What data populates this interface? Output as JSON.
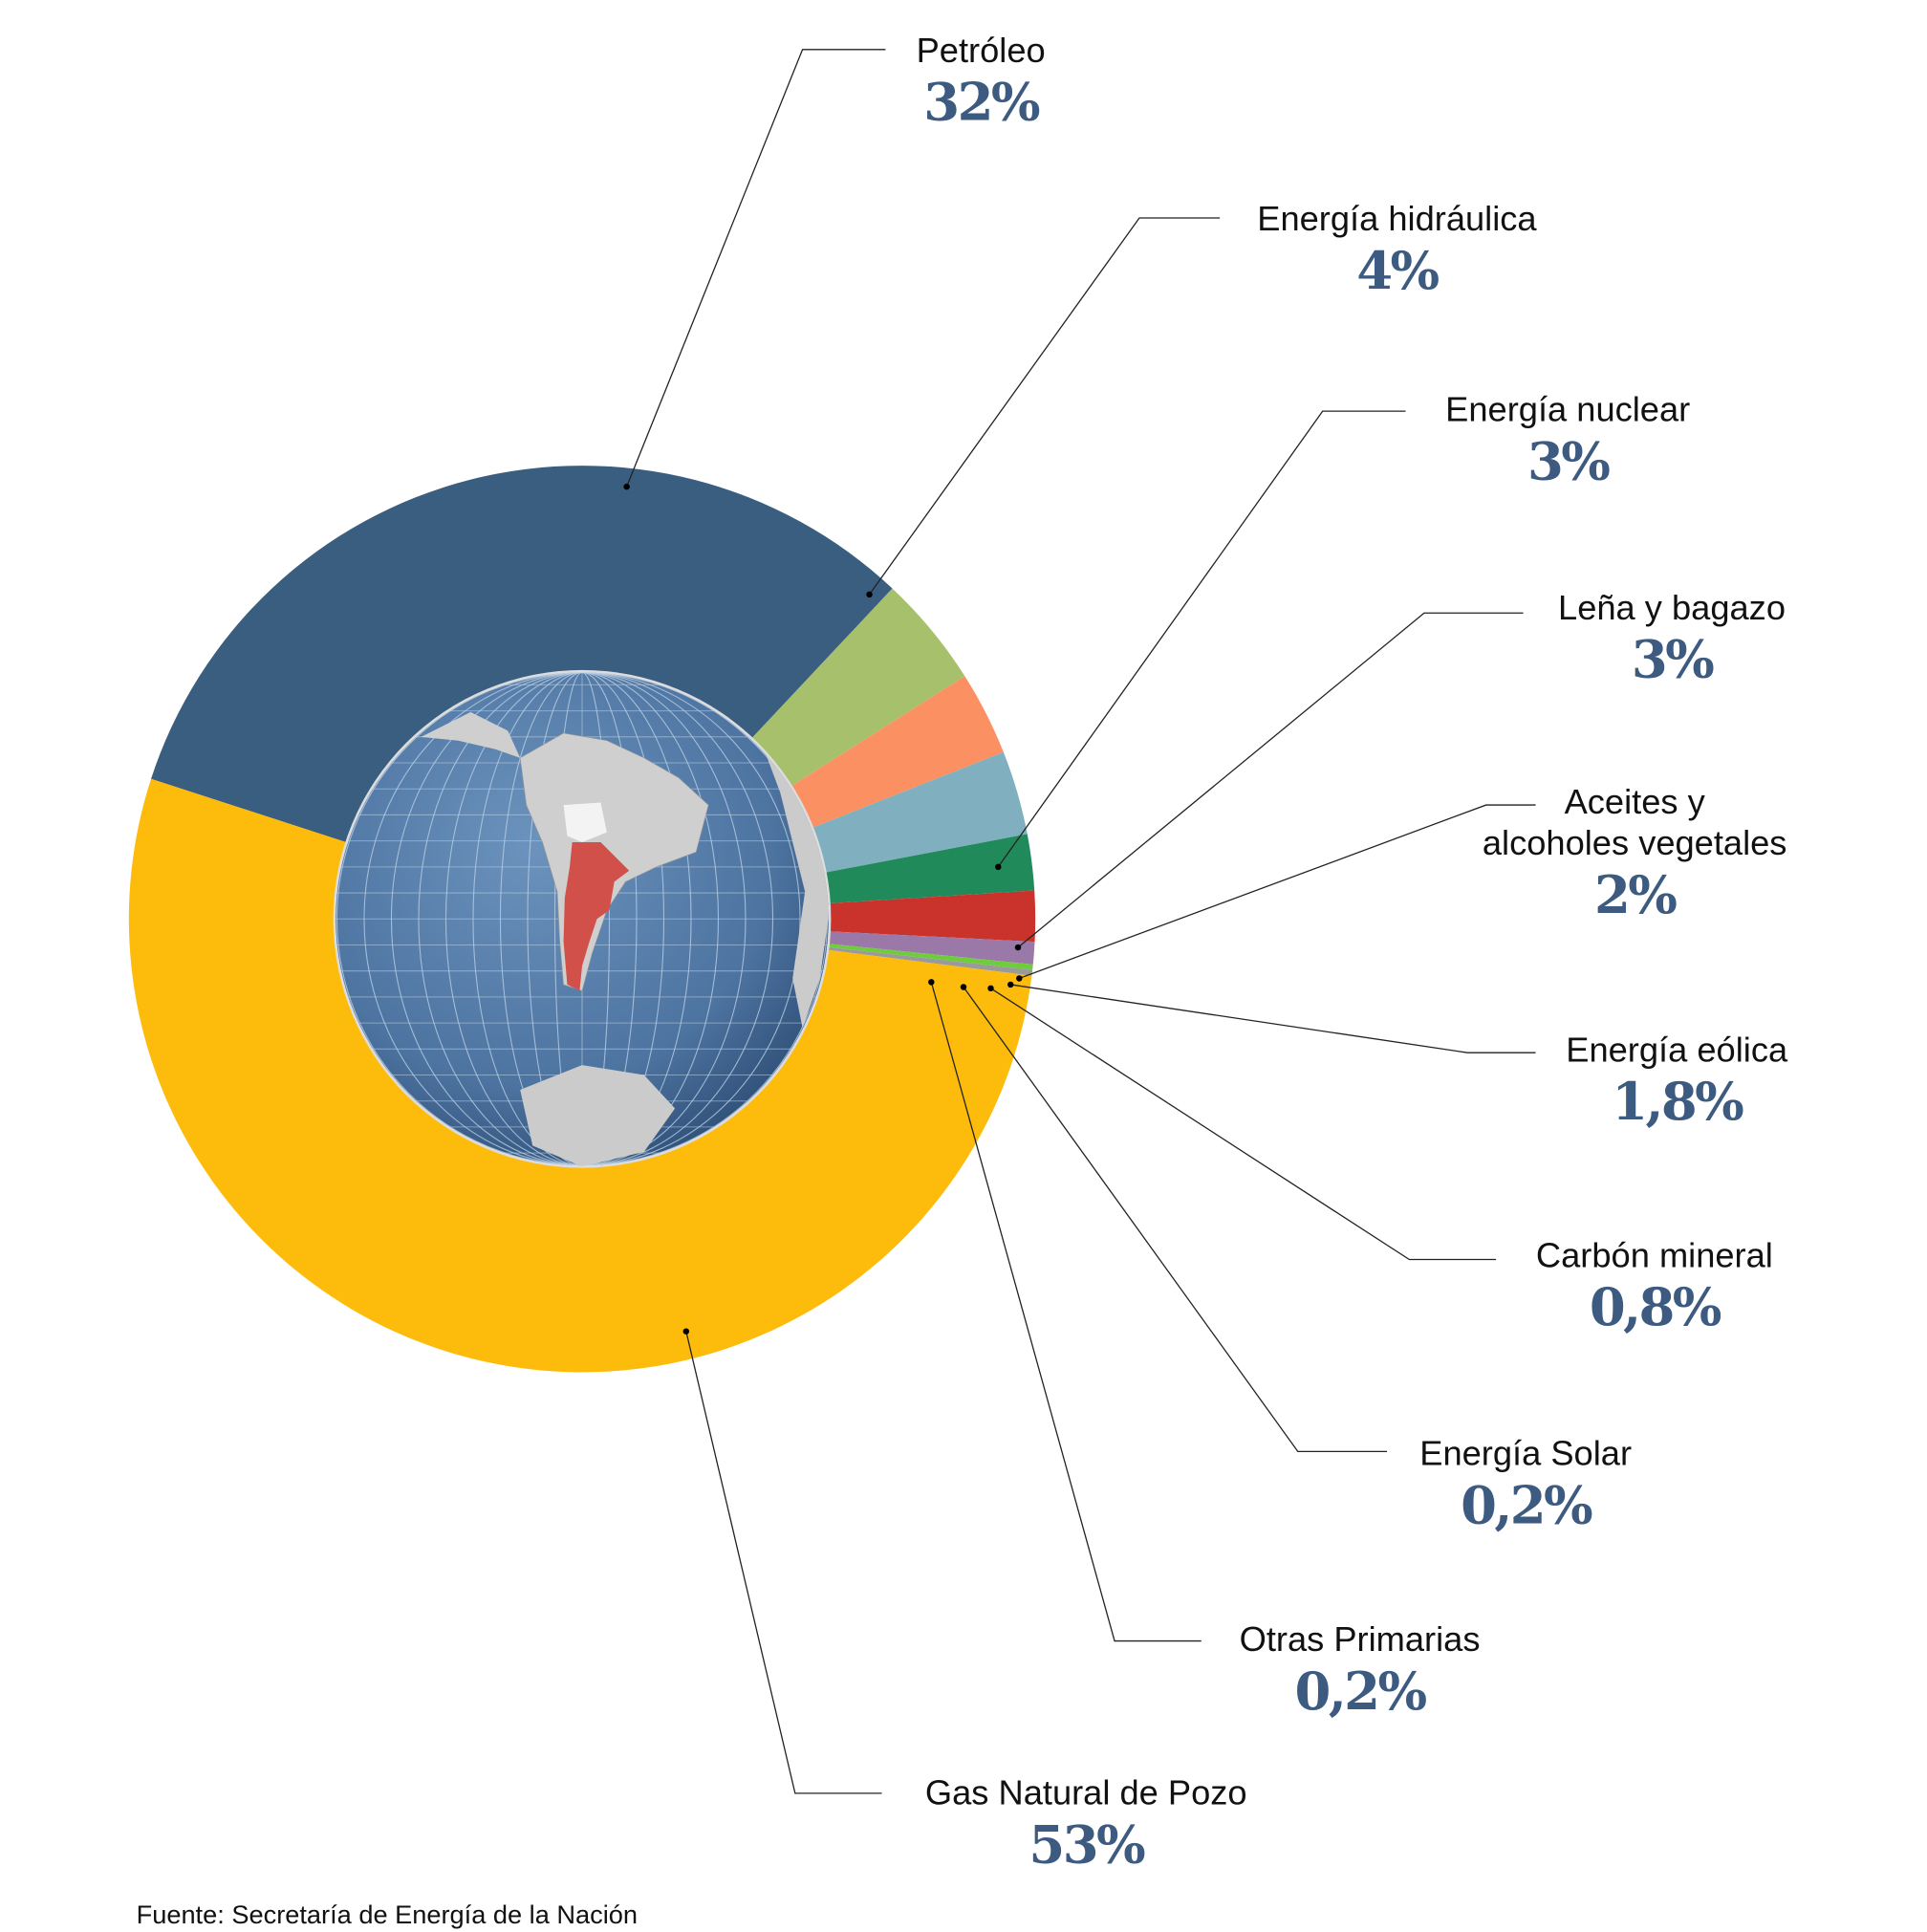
{
  "chart_data": {
    "type": "pie",
    "title": "",
    "source": "Fuente: Secretaría de Energía de la Nación",
    "slices": [
      {
        "label": "Petróleo",
        "value": 32,
        "display": "32%",
        "color": "#3a5e80"
      },
      {
        "label": "Energía hidráulica",
        "value": 4,
        "display": "4%",
        "color": "#a7c06b"
      },
      {
        "label": "Energía nuclear",
        "value": 3,
        "display": "3%",
        "color": "#fb9163"
      },
      {
        "label": "Leña y bagazo",
        "value": 3,
        "display": "3%",
        "color": "#80afbf"
      },
      {
        "label": "Aceites y alcoholes vegetales",
        "label_lines": [
          "Aceites y",
          "alcoholes vegetales"
        ],
        "value": 2,
        "display": "2%",
        "color": "#218a5a"
      },
      {
        "label": "Energía eólica",
        "value": 1.8,
        "display": "1,8%",
        "color": "#c9332c"
      },
      {
        "label": "Carbón mineral",
        "value": 0.8,
        "display": "0,8%",
        "color": "#9a79a8"
      },
      {
        "label": "Energía Solar",
        "value": 0.2,
        "display": "0,2%",
        "color": "#6fcc3a"
      },
      {
        "label": "Otras Primarias",
        "value": 0.2,
        "display": "0,2%",
        "color": "#9a9a9a"
      },
      {
        "label": "Gas Natural de Pozo",
        "value": 53,
        "display": "53%",
        "color": "#fdbb0b"
      }
    ]
  }
}
